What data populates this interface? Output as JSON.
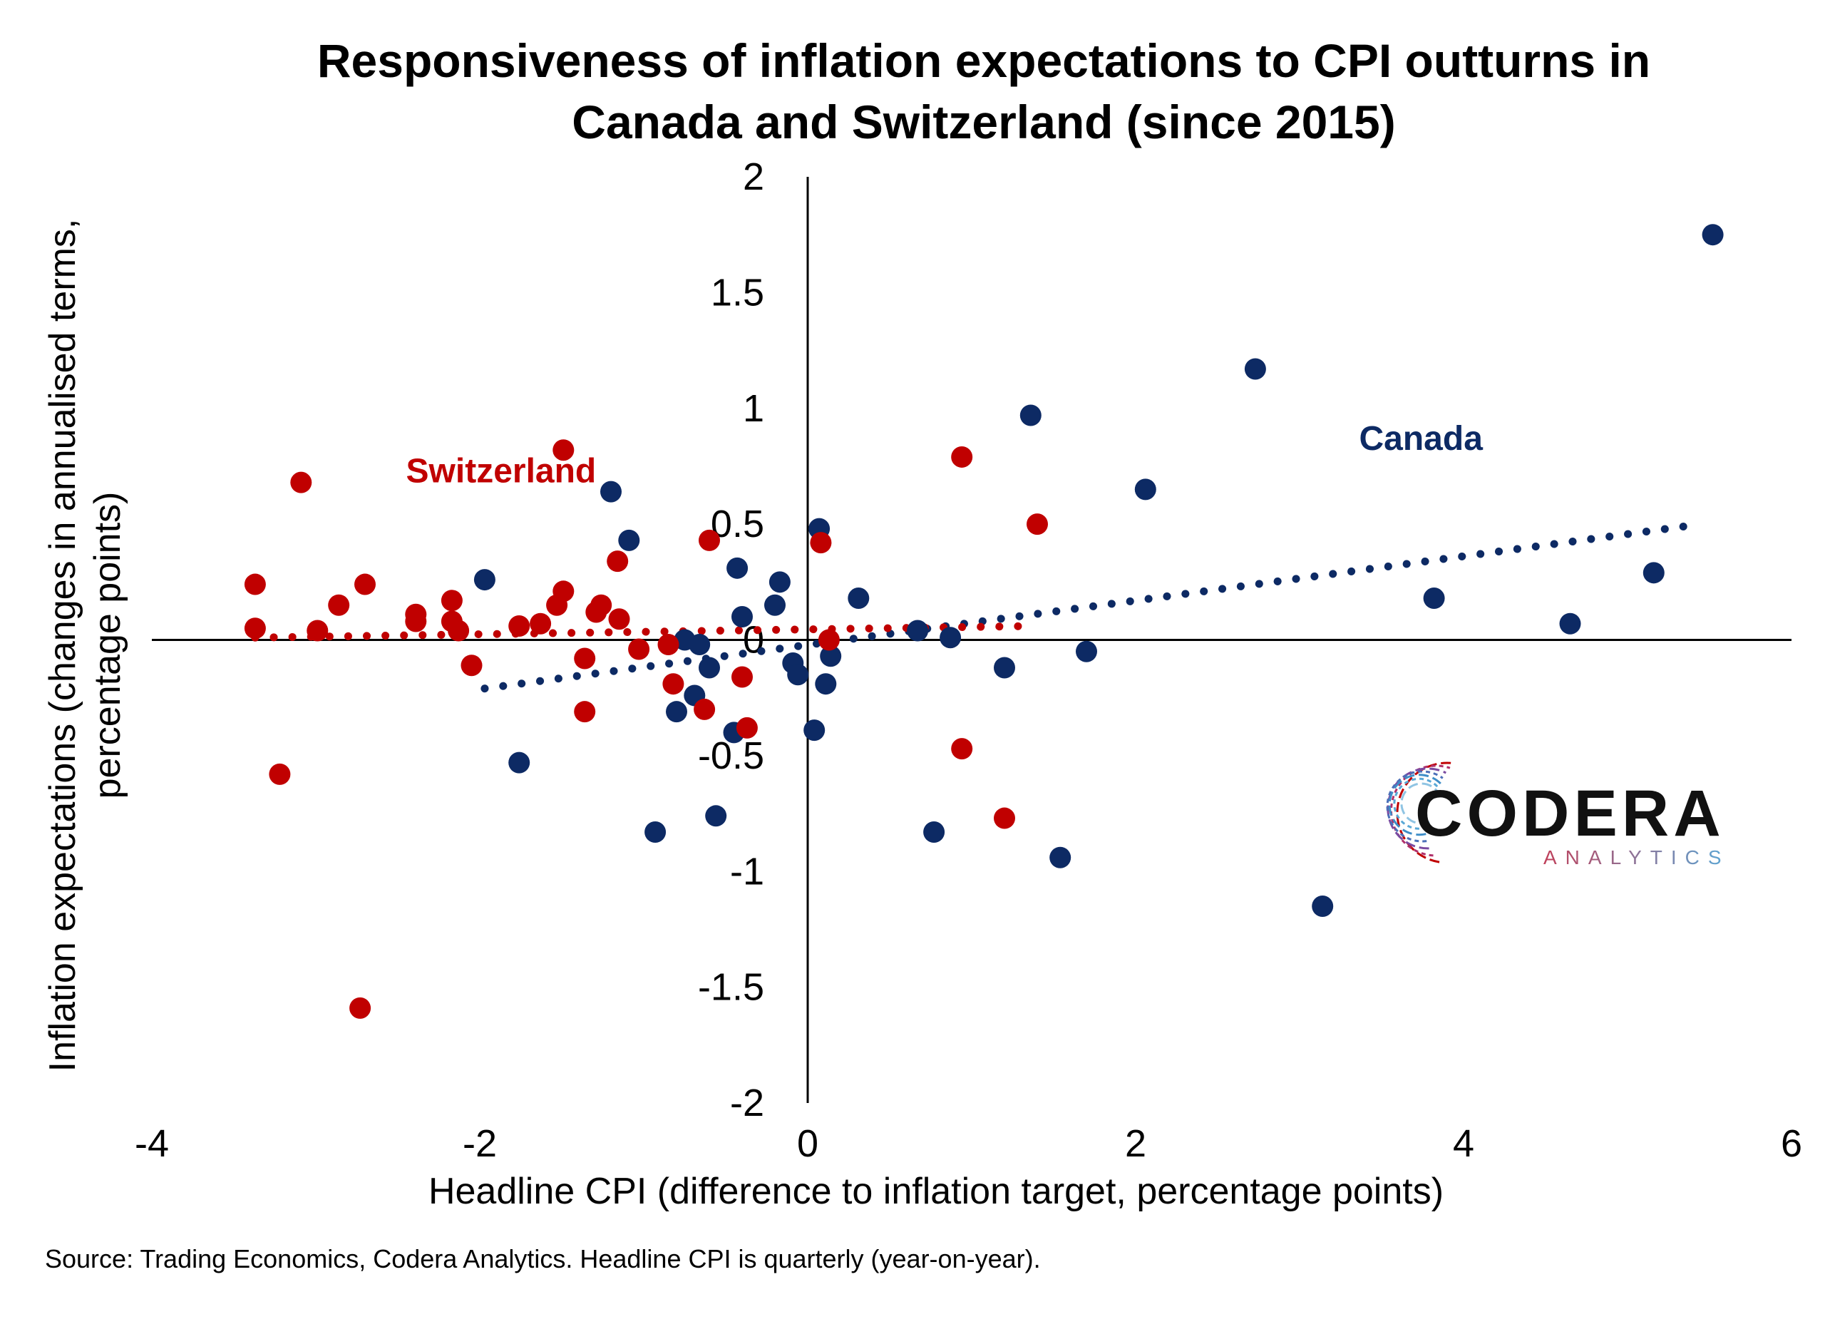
{
  "chart_data": {
    "type": "scatter",
    "title": "Responsiveness of inflation expectations to CPI outturns in Canada and Switzerland (since 2015)",
    "title_lines": [
      "Responsiveness of inflation expectations to CPI outturns in",
      "Canada and Switzerland (since 2015)"
    ],
    "xlabel": "Headline CPI (difference to inflation target, percentage points)",
    "ylabel_lines": [
      "Inflation expectations (changes in annualised terms,",
      "percentage points)"
    ],
    "xlim": [
      -4,
      6
    ],
    "ylim": [
      -2,
      2
    ],
    "x_ticks": [
      -4,
      -2,
      0,
      2,
      4,
      6
    ],
    "x_tick_labels": [
      "-4",
      "-2",
      "0",
      "2",
      "4",
      "6"
    ],
    "y_ticks": [
      -2,
      -1.5,
      -1,
      -0.5,
      0,
      0.5,
      1,
      1.5,
      2
    ],
    "y_tick_labels": [
      "-2",
      "-1.5",
      "-1",
      "-0.5",
      "0",
      "0.5",
      "1",
      "1.5",
      "2"
    ],
    "grid": false,
    "source": "Source: Trading Economics, Codera Analytics. Headline CPI is quarterly (year-on-year).",
    "series": [
      {
        "name": "Canada",
        "color": "#0d2a64",
        "trendline": {
          "x": [
            -1.97,
            5.45
          ],
          "y": [
            -0.21,
            0.5
          ]
        },
        "points": [
          {
            "x": 5.52,
            "y": 1.75
          },
          {
            "x": 2.73,
            "y": 1.17
          },
          {
            "x": 1.36,
            "y": 0.97
          },
          {
            "x": 2.06,
            "y": 0.65
          },
          {
            "x": 5.16,
            "y": 0.29
          },
          {
            "x": 3.82,
            "y": 0.18
          },
          {
            "x": 4.65,
            "y": 0.07
          },
          {
            "x": 1.7,
            "y": -0.05
          },
          {
            "x": 1.2,
            "y": -0.12
          },
          {
            "x": 1.54,
            "y": -0.94
          },
          {
            "x": 3.14,
            "y": -1.15
          },
          {
            "x": 0.77,
            "y": -0.83
          },
          {
            "x": 0.87,
            "y": 0.01
          },
          {
            "x": 0.67,
            "y": 0.04
          },
          {
            "x": 0.31,
            "y": 0.18
          },
          {
            "x": 0.07,
            "y": 0.48
          },
          {
            "x": -1.2,
            "y": 0.64
          },
          {
            "x": -1.09,
            "y": 0.43
          },
          {
            "x": -1.97,
            "y": 0.26
          },
          {
            "x": -0.43,
            "y": 0.31
          },
          {
            "x": -0.17,
            "y": 0.25
          },
          {
            "x": -0.2,
            "y": 0.15
          },
          {
            "x": -0.4,
            "y": 0.1
          },
          {
            "x": -0.75,
            "y": 0.0
          },
          {
            "x": -0.66,
            "y": -0.02
          },
          {
            "x": -0.6,
            "y": -0.12
          },
          {
            "x": -0.09,
            "y": -0.1
          },
          {
            "x": -0.06,
            "y": -0.15
          },
          {
            "x": 0.14,
            "y": -0.07
          },
          {
            "x": 0.11,
            "y": -0.19
          },
          {
            "x": -0.69,
            "y": -0.24
          },
          {
            "x": -0.8,
            "y": -0.31
          },
          {
            "x": -0.45,
            "y": -0.4
          },
          {
            "x": 0.04,
            "y": -0.39
          },
          {
            "x": -1.76,
            "y": -0.53
          },
          {
            "x": -0.56,
            "y": -0.76
          },
          {
            "x": -0.93,
            "y": -0.83
          }
        ]
      },
      {
        "name": "Switzerland",
        "color": "#c00000",
        "trendline": {
          "x": [
            -3.37,
            1.38
          ],
          "y": [
            0.01,
            0.06
          ]
        },
        "points": [
          {
            "x": -1.49,
            "y": 0.82
          },
          {
            "x": -3.09,
            "y": 0.68
          },
          {
            "x": 0.94,
            "y": 0.79
          },
          {
            "x": 1.4,
            "y": 0.5
          },
          {
            "x": -0.6,
            "y": 0.43
          },
          {
            "x": 0.08,
            "y": 0.42
          },
          {
            "x": -1.16,
            "y": 0.34
          },
          {
            "x": -3.37,
            "y": 0.24
          },
          {
            "x": -2.7,
            "y": 0.24
          },
          {
            "x": -1.49,
            "y": 0.21
          },
          {
            "x": -2.17,
            "y": 0.17
          },
          {
            "x": -2.86,
            "y": 0.15
          },
          {
            "x": -1.53,
            "y": 0.15
          },
          {
            "x": -1.26,
            "y": 0.15
          },
          {
            "x": -1.29,
            "y": 0.12
          },
          {
            "x": -2.39,
            "y": 0.11
          },
          {
            "x": -1.15,
            "y": 0.09
          },
          {
            "x": -2.17,
            "y": 0.08
          },
          {
            "x": -1.63,
            "y": 0.07
          },
          {
            "x": -2.39,
            "y": 0.08
          },
          {
            "x": -1.76,
            "y": 0.06
          },
          {
            "x": -3.37,
            "y": 0.05
          },
          {
            "x": -2.13,
            "y": 0.04
          },
          {
            "x": -2.99,
            "y": 0.04
          },
          {
            "x": -1.03,
            "y": -0.04
          },
          {
            "x": -0.85,
            "y": -0.02
          },
          {
            "x": -1.36,
            "y": -0.08
          },
          {
            "x": -2.05,
            "y": -0.11
          },
          {
            "x": -0.4,
            "y": -0.16
          },
          {
            "x": -0.82,
            "y": -0.19
          },
          {
            "x": 0.13,
            "y": 0.0
          },
          {
            "x": -1.36,
            "y": -0.31
          },
          {
            "x": -0.63,
            "y": -0.3
          },
          {
            "x": -0.37,
            "y": -0.38
          },
          {
            "x": 0.94,
            "y": -0.47
          },
          {
            "x": -3.22,
            "y": -0.58
          },
          {
            "x": 1.2,
            "y": -0.77
          },
          {
            "x": -2.73,
            "y": -1.59
          }
        ]
      }
    ],
    "annotations": [
      {
        "text": "Canada",
        "x": 3.74,
        "y": 0.87,
        "color": "#0d2a64"
      },
      {
        "text": "Switzerland",
        "x": -1.87,
        "y": 0.73,
        "color": "#c00000"
      }
    ]
  },
  "logo": {
    "name": "CODERA",
    "subtitle": "ANALYTICS"
  }
}
